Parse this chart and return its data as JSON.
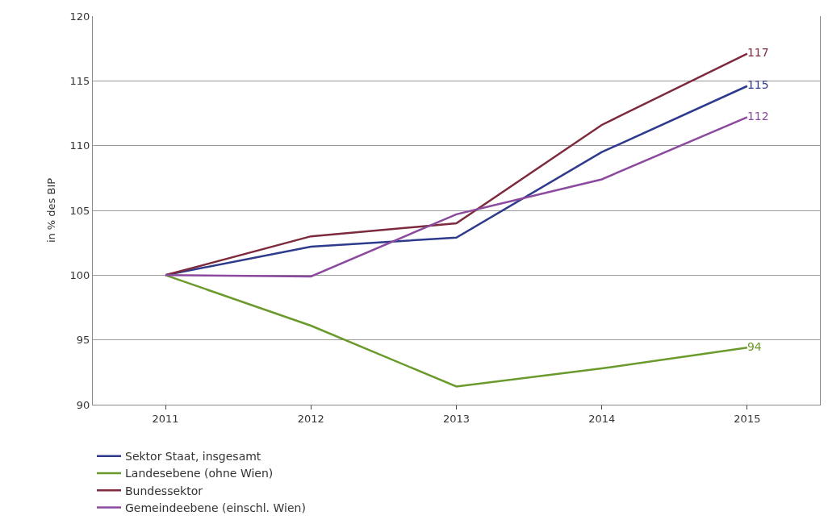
{
  "chart_data": {
    "type": "line",
    "ylabel": "in % des BIP",
    "categories": [
      "2011",
      "2012",
      "2013",
      "2014",
      "2015"
    ],
    "ylim": [
      90,
      120
    ],
    "yticks": [
      90,
      95,
      100,
      105,
      110,
      115,
      120
    ],
    "grid": "y",
    "legend": "bottom",
    "marker": "none",
    "line_style": "solid",
    "series": [
      {
        "name": "Sektor Staat, insgesamt",
        "color": "#2e3a8c",
        "values": [
          100,
          102.2,
          102.9,
          109.5,
          114.6
        ],
        "value_labels": [
          null,
          null,
          null,
          null,
          "115"
        ]
      },
      {
        "name": "Landesebene (ohne Wien)",
        "color": "#6b9a2c",
        "values": [
          100,
          96.1,
          91.4,
          92.8,
          94.4
        ],
        "value_labels": [
          null,
          null,
          null,
          null,
          "94"
        ]
      },
      {
        "name": "Bundessektor",
        "color": "#7d2a3c",
        "values": [
          100,
          103.0,
          104.0,
          111.6,
          117.1
        ],
        "value_labels": [
          null,
          null,
          null,
          null,
          "117"
        ]
      },
      {
        "name": "Gemeindeebene (einschl. Wien)",
        "color": "#8b4a9e",
        "values": [
          100,
          99.9,
          104.7,
          107.4,
          112.2
        ],
        "value_labels": [
          null,
          null,
          null,
          null,
          "112"
        ]
      }
    ]
  }
}
